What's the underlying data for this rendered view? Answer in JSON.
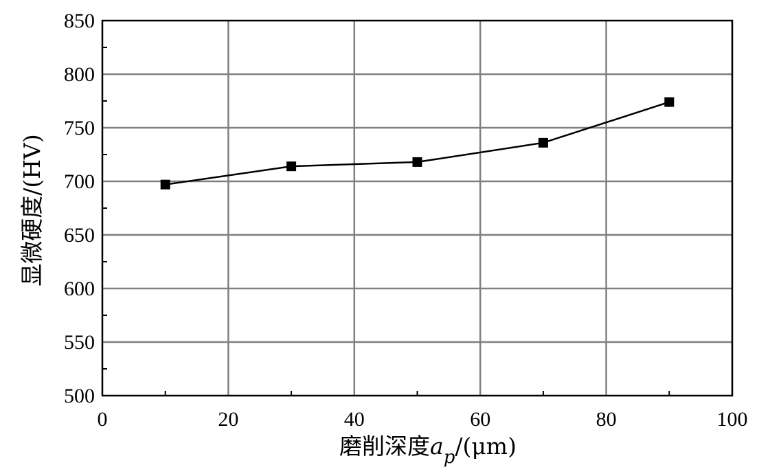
{
  "chart_data": {
    "type": "line",
    "xlabel_main": "磨削深度",
    "xlabel_var": "a",
    "xlabel_sub": "p",
    "xlabel_unit": "/(μm)",
    "ylabel": "显微硬度/(HV)",
    "xlim": [
      0,
      100
    ],
    "ylim": [
      500,
      850
    ],
    "xticks": [
      0,
      20,
      40,
      60,
      80,
      100
    ],
    "yticks": [
      500,
      550,
      600,
      650,
      700,
      750,
      800,
      850
    ],
    "grid": true,
    "marker": "square",
    "series": [
      {
        "x": [
          10,
          30,
          50,
          70,
          90
        ],
        "y": [
          697,
          714,
          718,
          736,
          774
        ]
      }
    ]
  }
}
